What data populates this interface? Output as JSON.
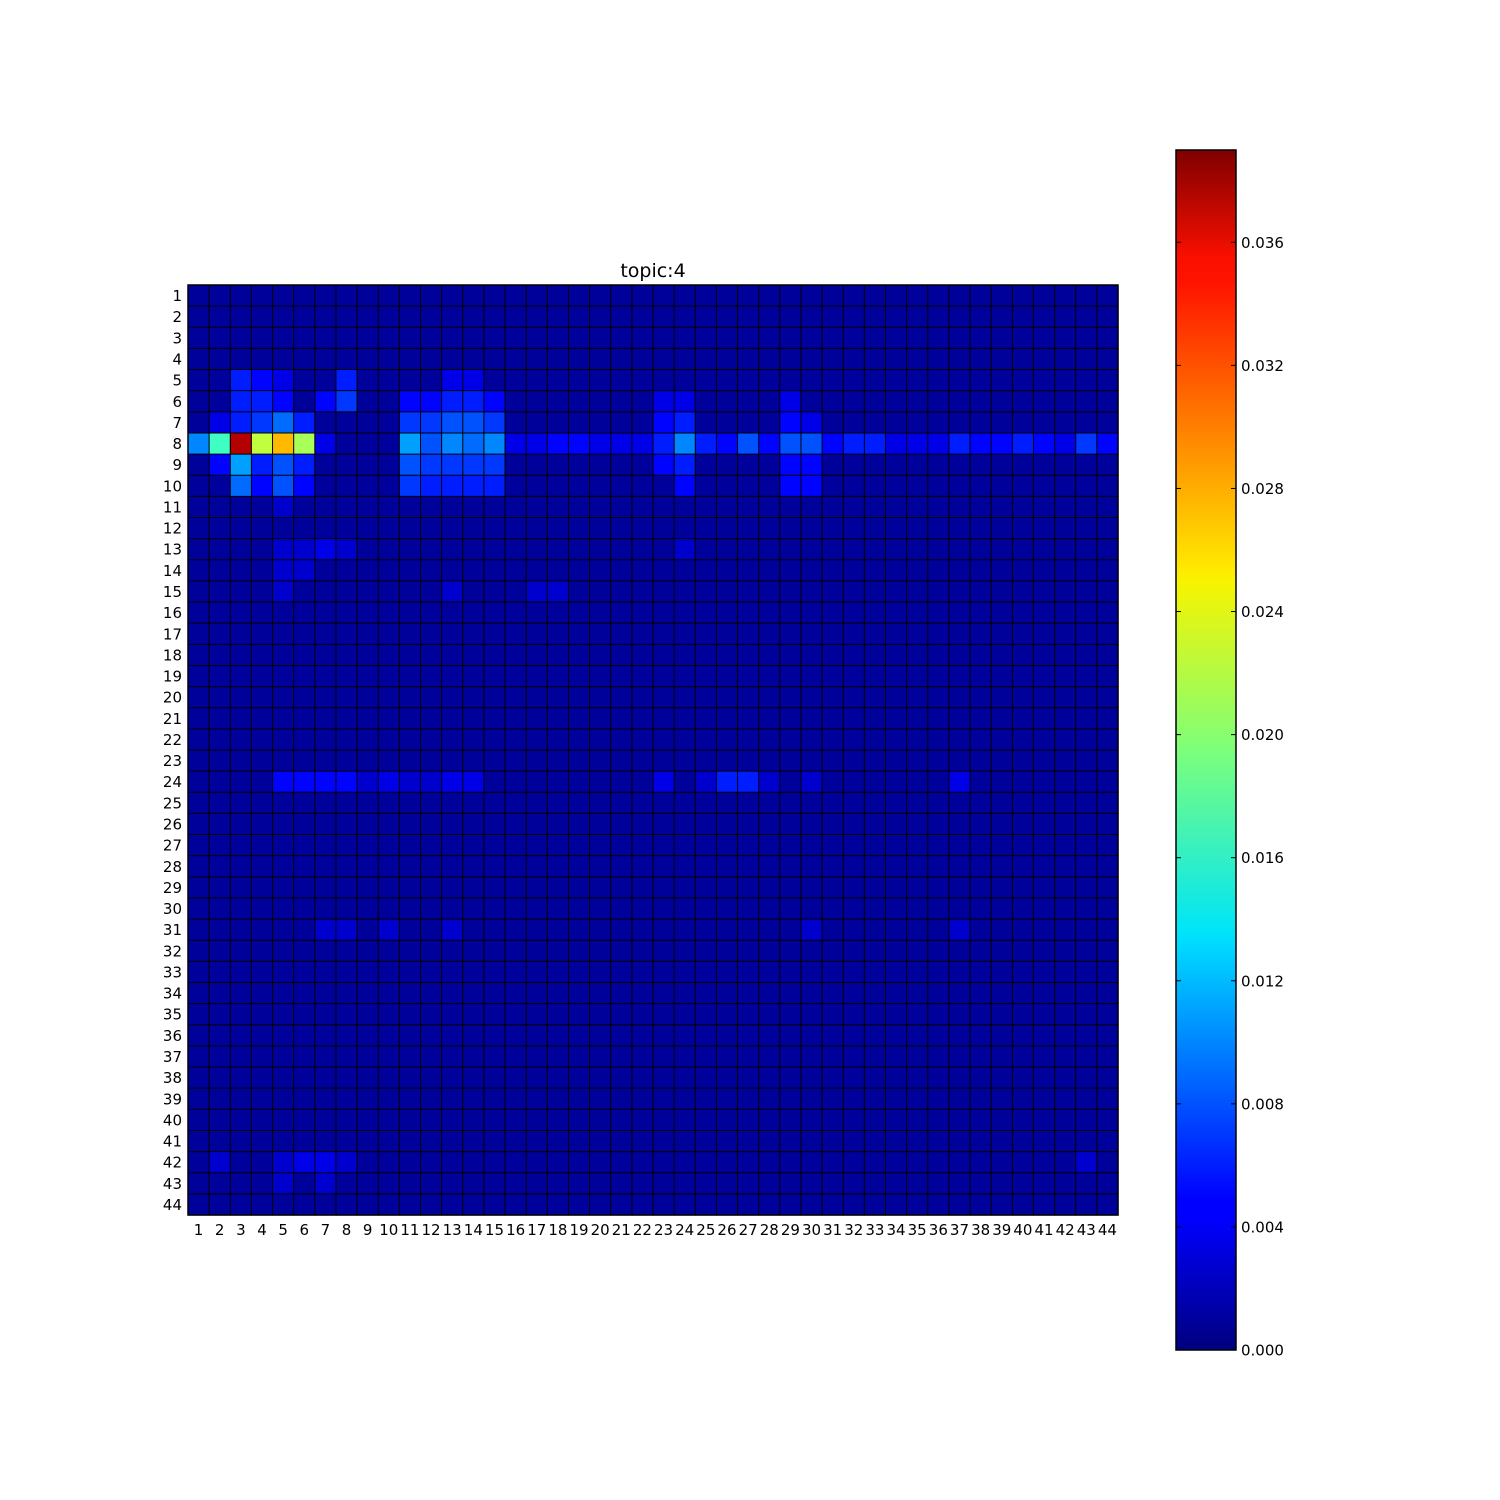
{
  "chart_data": {
    "type": "heatmap",
    "title": "topic:4",
    "xlabel": "",
    "ylabel": "",
    "x_tick_labels": [
      "1",
      "2",
      "3",
      "4",
      "5",
      "6",
      "7",
      "8",
      "9",
      "10",
      "11",
      "12",
      "13",
      "14",
      "15",
      "16",
      "17",
      "18",
      "19",
      "20",
      "21",
      "22",
      "23",
      "24",
      "25",
      "26",
      "27",
      "28",
      "29",
      "30",
      "31",
      "32",
      "33",
      "34",
      "35",
      "36",
      "37",
      "38",
      "39",
      "40",
      "41",
      "42",
      "43",
      "44"
    ],
    "y_tick_labels": [
      "1",
      "2",
      "3",
      "4",
      "5",
      "6",
      "7",
      "8",
      "9",
      "10",
      "11",
      "12",
      "13",
      "14",
      "15",
      "16",
      "17",
      "18",
      "19",
      "20",
      "21",
      "22",
      "23",
      "24",
      "25",
      "26",
      "27",
      "28",
      "29",
      "30",
      "31",
      "32",
      "33",
      "34",
      "35",
      "36",
      "37",
      "38",
      "39",
      "40",
      "41",
      "42",
      "43",
      "44"
    ],
    "colormap": "jet",
    "value_range": [
      0.0,
      0.039
    ],
    "background_value": 0.001,
    "grid": true,
    "grid_color": "#000000",
    "colorbar": {
      "placement": "right",
      "ticks": [
        0.0,
        0.004,
        0.008,
        0.012,
        0.016,
        0.02,
        0.024,
        0.028,
        0.032,
        0.036
      ],
      "tick_labels": [
        "0.000",
        "0.004",
        "0.008",
        "0.012",
        "0.016",
        "0.020",
        "0.024",
        "0.028",
        "0.032",
        "0.036"
      ]
    },
    "notable_cells": [
      {
        "row": 8,
        "col": 1,
        "value": 0.01
      },
      {
        "row": 8,
        "col": 2,
        "value": 0.017
      },
      {
        "row": 8,
        "col": 3,
        "value": 0.037
      },
      {
        "row": 8,
        "col": 4,
        "value": 0.022
      },
      {
        "row": 8,
        "col": 5,
        "value": 0.027
      },
      {
        "row": 8,
        "col": 6,
        "value": 0.021
      },
      {
        "row": 8,
        "col": 7,
        "value": 0.004
      },
      {
        "row": 8,
        "col": 11,
        "value": 0.011
      },
      {
        "row": 8,
        "col": 12,
        "value": 0.008
      },
      {
        "row": 8,
        "col": 13,
        "value": 0.01
      },
      {
        "row": 8,
        "col": 14,
        "value": 0.009
      },
      {
        "row": 8,
        "col": 15,
        "value": 0.01
      },
      {
        "row": 8,
        "col": 16,
        "value": 0.004
      },
      {
        "row": 8,
        "col": 17,
        "value": 0.004
      },
      {
        "row": 8,
        "col": 18,
        "value": 0.005
      },
      {
        "row": 8,
        "col": 19,
        "value": 0.005
      },
      {
        "row": 8,
        "col": 20,
        "value": 0.004
      },
      {
        "row": 8,
        "col": 21,
        "value": 0.004
      },
      {
        "row": 8,
        "col": 22,
        "value": 0.004
      },
      {
        "row": 8,
        "col": 23,
        "value": 0.006
      },
      {
        "row": 8,
        "col": 24,
        "value": 0.01
      },
      {
        "row": 8,
        "col": 25,
        "value": 0.006
      },
      {
        "row": 8,
        "col": 26,
        "value": 0.005
      },
      {
        "row": 8,
        "col": 27,
        "value": 0.008
      },
      {
        "row": 8,
        "col": 28,
        "value": 0.005
      },
      {
        "row": 8,
        "col": 29,
        "value": 0.008
      },
      {
        "row": 8,
        "col": 30,
        "value": 0.008
      },
      {
        "row": 8,
        "col": 31,
        "value": 0.005
      },
      {
        "row": 8,
        "col": 32,
        "value": 0.006
      },
      {
        "row": 8,
        "col": 33,
        "value": 0.006
      },
      {
        "row": 8,
        "col": 34,
        "value": 0.004
      },
      {
        "row": 8,
        "col": 35,
        "value": 0.004
      },
      {
        "row": 8,
        "col": 36,
        "value": 0.004
      },
      {
        "row": 8,
        "col": 37,
        "value": 0.006
      },
      {
        "row": 8,
        "col": 38,
        "value": 0.005
      },
      {
        "row": 8,
        "col": 39,
        "value": 0.005
      },
      {
        "row": 8,
        "col": 40,
        "value": 0.006
      },
      {
        "row": 8,
        "col": 41,
        "value": 0.005
      },
      {
        "row": 8,
        "col": 42,
        "value": 0.004
      },
      {
        "row": 8,
        "col": 43,
        "value": 0.007
      },
      {
        "row": 8,
        "col": 44,
        "value": 0.005
      },
      {
        "row": 5,
        "col": 3,
        "value": 0.006
      },
      {
        "row": 5,
        "col": 4,
        "value": 0.005
      },
      {
        "row": 5,
        "col": 5,
        "value": 0.004
      },
      {
        "row": 5,
        "col": 8,
        "value": 0.006
      },
      {
        "row": 5,
        "col": 13,
        "value": 0.004
      },
      {
        "row": 5,
        "col": 14,
        "value": 0.004
      },
      {
        "row": 6,
        "col": 3,
        "value": 0.006
      },
      {
        "row": 6,
        "col": 4,
        "value": 0.006
      },
      {
        "row": 6,
        "col": 5,
        "value": 0.005
      },
      {
        "row": 6,
        "col": 7,
        "value": 0.005
      },
      {
        "row": 6,
        "col": 8,
        "value": 0.007
      },
      {
        "row": 6,
        "col": 11,
        "value": 0.005
      },
      {
        "row": 6,
        "col": 12,
        "value": 0.005
      },
      {
        "row": 6,
        "col": 13,
        "value": 0.006
      },
      {
        "row": 6,
        "col": 14,
        "value": 0.006
      },
      {
        "row": 6,
        "col": 15,
        "value": 0.005
      },
      {
        "row": 6,
        "col": 23,
        "value": 0.004
      },
      {
        "row": 6,
        "col": 24,
        "value": 0.004
      },
      {
        "row": 6,
        "col": 29,
        "value": 0.004
      },
      {
        "row": 7,
        "col": 2,
        "value": 0.004
      },
      {
        "row": 7,
        "col": 3,
        "value": 0.006
      },
      {
        "row": 7,
        "col": 4,
        "value": 0.007
      },
      {
        "row": 7,
        "col": 5,
        "value": 0.009
      },
      {
        "row": 7,
        "col": 6,
        "value": 0.006
      },
      {
        "row": 7,
        "col": 11,
        "value": 0.007
      },
      {
        "row": 7,
        "col": 12,
        "value": 0.007
      },
      {
        "row": 7,
        "col": 13,
        "value": 0.008
      },
      {
        "row": 7,
        "col": 14,
        "value": 0.008
      },
      {
        "row": 7,
        "col": 15,
        "value": 0.007
      },
      {
        "row": 7,
        "col": 23,
        "value": 0.005
      },
      {
        "row": 7,
        "col": 24,
        "value": 0.006
      },
      {
        "row": 7,
        "col": 29,
        "value": 0.005
      },
      {
        "row": 7,
        "col": 30,
        "value": 0.004
      },
      {
        "row": 9,
        "col": 2,
        "value": 0.005
      },
      {
        "row": 9,
        "col": 3,
        "value": 0.011
      },
      {
        "row": 9,
        "col": 4,
        "value": 0.006
      },
      {
        "row": 9,
        "col": 5,
        "value": 0.008
      },
      {
        "row": 9,
        "col": 6,
        "value": 0.006
      },
      {
        "row": 9,
        "col": 11,
        "value": 0.008
      },
      {
        "row": 9,
        "col": 12,
        "value": 0.007
      },
      {
        "row": 9,
        "col": 13,
        "value": 0.007
      },
      {
        "row": 9,
        "col": 14,
        "value": 0.007
      },
      {
        "row": 9,
        "col": 15,
        "value": 0.007
      },
      {
        "row": 9,
        "col": 23,
        "value": 0.005
      },
      {
        "row": 9,
        "col": 24,
        "value": 0.006
      },
      {
        "row": 9,
        "col": 29,
        "value": 0.005
      },
      {
        "row": 9,
        "col": 30,
        "value": 0.005
      },
      {
        "row": 10,
        "col": 3,
        "value": 0.009
      },
      {
        "row": 10,
        "col": 4,
        "value": 0.005
      },
      {
        "row": 10,
        "col": 5,
        "value": 0.008
      },
      {
        "row": 10,
        "col": 6,
        "value": 0.005
      },
      {
        "row": 10,
        "col": 11,
        "value": 0.007
      },
      {
        "row": 10,
        "col": 12,
        "value": 0.006
      },
      {
        "row": 10,
        "col": 13,
        "value": 0.006
      },
      {
        "row": 10,
        "col": 14,
        "value": 0.006
      },
      {
        "row": 10,
        "col": 15,
        "value": 0.006
      },
      {
        "row": 10,
        "col": 24,
        "value": 0.005
      },
      {
        "row": 10,
        "col": 29,
        "value": 0.005
      },
      {
        "row": 10,
        "col": 30,
        "value": 0.005
      },
      {
        "row": 11,
        "col": 5,
        "value": 0.003
      },
      {
        "row": 13,
        "col": 5,
        "value": 0.003
      },
      {
        "row": 13,
        "col": 6,
        "value": 0.003
      },
      {
        "row": 13,
        "col": 7,
        "value": 0.004
      },
      {
        "row": 13,
        "col": 8,
        "value": 0.003
      },
      {
        "row": 13,
        "col": 24,
        "value": 0.003
      },
      {
        "row": 14,
        "col": 5,
        "value": 0.003
      },
      {
        "row": 14,
        "col": 6,
        "value": 0.003
      },
      {
        "row": 15,
        "col": 5,
        "value": 0.003
      },
      {
        "row": 15,
        "col": 13,
        "value": 0.003
      },
      {
        "row": 15,
        "col": 17,
        "value": 0.003
      },
      {
        "row": 15,
        "col": 18,
        "value": 0.003
      },
      {
        "row": 24,
        "col": 5,
        "value": 0.005
      },
      {
        "row": 24,
        "col": 6,
        "value": 0.005
      },
      {
        "row": 24,
        "col": 7,
        "value": 0.005
      },
      {
        "row": 24,
        "col": 8,
        "value": 0.005
      },
      {
        "row": 24,
        "col": 9,
        "value": 0.003
      },
      {
        "row": 24,
        "col": 10,
        "value": 0.004
      },
      {
        "row": 24,
        "col": 11,
        "value": 0.003
      },
      {
        "row": 24,
        "col": 12,
        "value": 0.003
      },
      {
        "row": 24,
        "col": 13,
        "value": 0.004
      },
      {
        "row": 24,
        "col": 14,
        "value": 0.004
      },
      {
        "row": 24,
        "col": 23,
        "value": 0.004
      },
      {
        "row": 24,
        "col": 25,
        "value": 0.003
      },
      {
        "row": 24,
        "col": 26,
        "value": 0.006
      },
      {
        "row": 24,
        "col": 27,
        "value": 0.006
      },
      {
        "row": 24,
        "col": 28,
        "value": 0.003
      },
      {
        "row": 24,
        "col": 30,
        "value": 0.003
      },
      {
        "row": 24,
        "col": 37,
        "value": 0.004
      },
      {
        "row": 31,
        "col": 7,
        "value": 0.003
      },
      {
        "row": 31,
        "col": 8,
        "value": 0.003
      },
      {
        "row": 31,
        "col": 10,
        "value": 0.003
      },
      {
        "row": 31,
        "col": 13,
        "value": 0.003
      },
      {
        "row": 31,
        "col": 30,
        "value": 0.003
      },
      {
        "row": 31,
        "col": 37,
        "value": 0.003
      },
      {
        "row": 42,
        "col": 2,
        "value": 0.003
      },
      {
        "row": 42,
        "col": 5,
        "value": 0.003
      },
      {
        "row": 42,
        "col": 6,
        "value": 0.004
      },
      {
        "row": 42,
        "col": 7,
        "value": 0.004
      },
      {
        "row": 42,
        "col": 8,
        "value": 0.003
      },
      {
        "row": 42,
        "col": 43,
        "value": 0.003
      },
      {
        "row": 43,
        "col": 5,
        "value": 0.003
      },
      {
        "row": 43,
        "col": 7,
        "value": 0.003
      }
    ]
  }
}
